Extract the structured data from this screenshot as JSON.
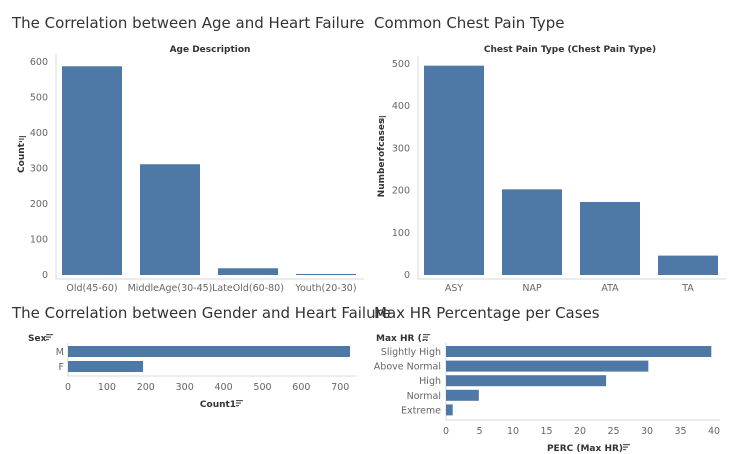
{
  "colors": {
    "bar": "#4e79a7",
    "axis": "#d9d9d9",
    "label": "#666666",
    "header": "#333333"
  },
  "panels": {
    "age": {
      "title": "The Correlation between Age and Heart Failure"
    },
    "chest": {
      "title": "Common Chest Pain Type"
    },
    "gender": {
      "title": "The Correlation between Gender and Heart Failure"
    },
    "maxhr": {
      "title": "Max HR Percentage per Cases"
    }
  },
  "chart_data": [
    {
      "id": "age",
      "type": "bar",
      "orientation": "vertical",
      "header": "Age Description",
      "ylabel": "Count",
      "sort_icon": "sort-icon",
      "categories": [
        "Old(45-60)",
        "MiddleAge(30-45)",
        "LateOld(60-80)",
        "Youth(20-30)"
      ],
      "values": [
        588,
        312,
        19,
        3
      ],
      "ylim": [
        0,
        600
      ],
      "yticks": [
        0,
        100,
        200,
        300,
        400,
        500,
        600
      ],
      "grid": false
    },
    {
      "id": "chest",
      "type": "bar",
      "orientation": "vertical",
      "header": "Chest Pain Type (Chest Pain Type)",
      "ylabel": "Numberofcases",
      "sort_icon": "sort-icon",
      "categories": [
        "ASY",
        "NAP",
        "ATA",
        "TA"
      ],
      "values": [
        496,
        203,
        173,
        46
      ],
      "ylim": [
        0,
        500
      ],
      "yticks": [
        0,
        100,
        200,
        300,
        400,
        500
      ],
      "grid": false
    },
    {
      "id": "gender",
      "type": "bar",
      "orientation": "horizontal",
      "header": "Sex",
      "xlabel": "Count1",
      "sort_icon": "sort-icon",
      "categories": [
        "M",
        "F"
      ],
      "values": [
        725,
        193
      ],
      "xlim": [
        0,
        725
      ],
      "xticks": [
        0,
        100,
        200,
        300,
        400,
        500,
        600,
        700
      ],
      "grid": false
    },
    {
      "id": "maxhr",
      "type": "bar",
      "orientation": "horizontal",
      "header": "Max HR (..",
      "xlabel": "PERC (Max HR)",
      "sort_icon": "sort-icon",
      "categories": [
        "Slightly High",
        "Above Normal",
        "High",
        "Normal",
        "Extreme"
      ],
      "values": [
        39.6,
        30.2,
        23.9,
        4.9,
        1.0
      ],
      "xlim": [
        0,
        40
      ],
      "xticks": [
        0,
        5,
        10,
        15,
        20,
        25,
        30,
        35,
        40
      ],
      "grid": false
    }
  ]
}
